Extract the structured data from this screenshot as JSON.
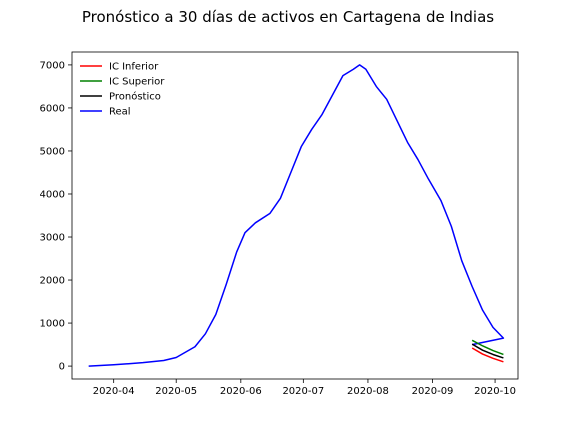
{
  "chart_data": {
    "type": "line",
    "title": "Pronóstico a 30 días de activos en Cartagena de Indias",
    "xlabel": "",
    "ylabel": "",
    "x_axis_type": "date",
    "xlim": [
      "2020-03-12",
      "2020-10-12"
    ],
    "ylim": [
      -300,
      7300
    ],
    "x_ticks": [
      "2020-04-01",
      "2020-05-01",
      "2020-06-01",
      "2020-07-01",
      "2020-08-01",
      "2020-09-01",
      "2020-10-01"
    ],
    "x_tick_labels": [
      "2020-04",
      "2020-05",
      "2020-06",
      "2020-07",
      "2020-08",
      "2020-09",
      "2020-10"
    ],
    "y_ticks": [
      0,
      1000,
      2000,
      3000,
      4000,
      5000,
      6000,
      7000
    ],
    "y_tick_labels": [
      "0",
      "1000",
      "2000",
      "3000",
      "4000",
      "5000",
      "6000",
      "7000"
    ],
    "grid": false,
    "legend_position": "top-left",
    "series": [
      {
        "name": "IC Inferior",
        "color": "#ff0000",
        "points": [
          [
            "2020-09-20",
            420
          ],
          [
            "2020-09-25",
            280
          ],
          [
            "2020-09-30",
            180
          ],
          [
            "2020-10-05",
            100
          ]
        ]
      },
      {
        "name": "IC Superior",
        "color": "#008000",
        "points": [
          [
            "2020-09-20",
            600
          ],
          [
            "2020-09-25",
            470
          ],
          [
            "2020-09-30",
            360
          ],
          [
            "2020-10-05",
            270
          ]
        ]
      },
      {
        "name": "Pronóstico",
        "color": "#000000",
        "points": [
          [
            "2020-09-20",
            510
          ],
          [
            "2020-09-25",
            370
          ],
          [
            "2020-09-30",
            270
          ],
          [
            "2020-10-05",
            190
          ]
        ]
      },
      {
        "name": "Real",
        "color": "#0000ff",
        "points": [
          [
            "2020-03-20",
            0
          ],
          [
            "2020-04-01",
            30
          ],
          [
            "2020-04-15",
            80
          ],
          [
            "2020-04-25",
            130
          ],
          [
            "2020-05-01",
            200
          ],
          [
            "2020-05-10",
            450
          ],
          [
            "2020-05-15",
            750
          ],
          [
            "2020-05-20",
            1200
          ],
          [
            "2020-05-25",
            1900
          ],
          [
            "2020-05-30",
            2650
          ],
          [
            "2020-06-03",
            3100
          ],
          [
            "2020-06-08",
            3330
          ],
          [
            "2020-06-15",
            3550
          ],
          [
            "2020-06-20",
            3900
          ],
          [
            "2020-06-25",
            4500
          ],
          [
            "2020-06-30",
            5100
          ],
          [
            "2020-07-05",
            5500
          ],
          [
            "2020-07-10",
            5850
          ],
          [
            "2020-07-15",
            6300
          ],
          [
            "2020-07-20",
            6750
          ],
          [
            "2020-07-25",
            6900
          ],
          [
            "2020-07-28",
            7000
          ],
          [
            "2020-07-31",
            6900
          ],
          [
            "2020-08-05",
            6500
          ],
          [
            "2020-08-10",
            6200
          ],
          [
            "2020-08-15",
            5700
          ],
          [
            "2020-08-20",
            5200
          ],
          [
            "2020-08-25",
            4800
          ],
          [
            "2020-08-30",
            4350
          ],
          [
            "2020-09-05",
            3850
          ],
          [
            "2020-09-10",
            3250
          ],
          [
            "2020-09-15",
            2450
          ],
          [
            "2020-09-20",
            1850
          ],
          [
            "2020-09-25",
            1300
          ],
          [
            "2020-09-30",
            900
          ],
          [
            "2020-10-05",
            650
          ],
          [
            "2020-09-20",
            500
          ]
        ]
      }
    ]
  }
}
